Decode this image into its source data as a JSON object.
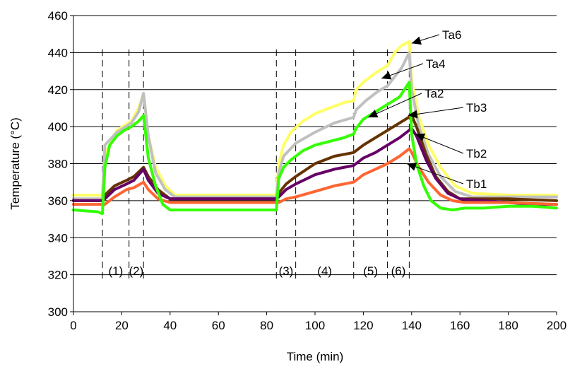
{
  "chart_data": {
    "type": "line",
    "xlabel": "Time (min)",
    "ylabel": "Temperature (°C)",
    "xlim": [
      0,
      200
    ],
    "ylim": [
      300,
      460
    ],
    "x_ticks": [
      0,
      20,
      40,
      60,
      80,
      100,
      120,
      140,
      160,
      180,
      200
    ],
    "y_ticks": [
      300,
      320,
      340,
      360,
      380,
      400,
      420,
      440,
      460
    ],
    "grid": "horizontal",
    "legend": "none",
    "series": [
      {
        "name": "Ta6",
        "color": "#FFFF66",
        "x": [
          0,
          12,
          13,
          18,
          24,
          27,
          29,
          31,
          34,
          38,
          42,
          60,
          84,
          85,
          87,
          90,
          95,
          100,
          106,
          112,
          116,
          117,
          120,
          125,
          130,
          133,
          136,
          139,
          140,
          143,
          147,
          152,
          158,
          165,
          180,
          200
        ],
        "y": [
          363,
          363,
          385,
          398,
          403,
          410,
          418,
          395,
          378,
          368,
          363,
          363,
          363,
          380,
          390,
          397,
          403,
          407,
          410,
          413,
          414,
          420,
          424,
          429,
          433,
          440,
          444,
          446,
          425,
          405,
          390,
          378,
          368,
          364,
          363,
          363
        ]
      },
      {
        "name": "Ta4",
        "color": "#C0C0C0",
        "x": [
          0,
          12,
          13,
          18,
          24,
          27,
          29,
          31,
          34,
          38,
          42,
          60,
          84,
          85,
          87,
          92,
          100,
          108,
          116,
          117,
          121,
          126,
          130,
          133,
          136,
          139,
          140,
          143,
          147,
          152,
          158,
          165,
          180,
          200
        ],
        "y": [
          361,
          361,
          390,
          397,
          402,
          408,
          418,
          395,
          375,
          366,
          362,
          362,
          362,
          375,
          384,
          391,
          397,
          402,
          405,
          409,
          414,
          419,
          422,
          427,
          432,
          440,
          420,
          400,
          385,
          373,
          365,
          362,
          362,
          362
        ]
      },
      {
        "name": "Tb3",
        "color": "#663300",
        "x": [
          0,
          12,
          13,
          17,
          22,
          25,
          29,
          31,
          35,
          40,
          60,
          84,
          85,
          88,
          92,
          100,
          108,
          116,
          120,
          125,
          130,
          135,
          140,
          142,
          146,
          150,
          155,
          160,
          180,
          200
        ],
        "y": [
          360,
          360,
          363,
          368,
          371,
          373,
          378,
          373,
          366,
          361,
          361,
          361,
          364,
          369,
          373,
          380,
          384,
          386,
          390,
          394,
          398,
          402,
          406,
          400,
          385,
          373,
          365,
          361,
          361,
          360
        ]
      },
      {
        "name": "Tb2",
        "color": "#660066",
        "x": [
          0,
          12,
          13,
          17,
          22,
          25,
          29,
          31,
          35,
          40,
          60,
          84,
          85,
          88,
          92,
          100,
          108,
          116,
          120,
          125,
          130,
          135,
          140,
          142,
          146,
          150,
          155,
          160,
          170,
          180,
          190,
          200
        ],
        "y": [
          360,
          360,
          361,
          366,
          369,
          371,
          377,
          371,
          364,
          361,
          361,
          361,
          362,
          366,
          369,
          374,
          377,
          379,
          383,
          386,
          390,
          394,
          399,
          395,
          382,
          372,
          364,
          361,
          360,
          359,
          358,
          358
        ]
      },
      {
        "name": "Tb1",
        "color": "#FF6633",
        "x": [
          0,
          12,
          13,
          17,
          22,
          25,
          29,
          31,
          35,
          40,
          60,
          84,
          85,
          88,
          92,
          100,
          108,
          116,
          120,
          125,
          130,
          135,
          139,
          140,
          143,
          147,
          152,
          157,
          162,
          180,
          200
        ],
        "y": [
          358,
          358,
          358,
          362,
          366,
          367,
          370,
          366,
          361,
          359,
          359,
          359,
          359,
          361,
          362,
          365,
          368,
          370,
          374,
          377,
          380,
          384,
          388,
          386,
          378,
          370,
          363,
          360,
          359,
          359,
          358
        ]
      },
      {
        "name": "Ta2",
        "color": "#33FF00",
        "x": [
          0,
          10,
          12,
          13,
          15,
          18,
          21,
          24,
          27,
          29,
          31,
          34,
          37,
          40,
          45,
          60,
          84,
          85,
          87,
          90,
          95,
          100,
          106,
          112,
          116,
          117,
          120,
          125,
          130,
          135,
          139,
          140,
          142,
          145,
          148,
          152,
          157,
          162,
          170,
          180,
          190,
          200
        ],
        "y": [
          355,
          354,
          353,
          378,
          390,
          395,
          398,
          400,
          403,
          406,
          383,
          368,
          358,
          355,
          355,
          355,
          355,
          372,
          378,
          382,
          387,
          390,
          392,
          394,
          396,
          399,
          404,
          408,
          412,
          416,
          424,
          396,
          380,
          368,
          360,
          356,
          355,
          356,
          356,
          357,
          357,
          356
        ]
      }
    ],
    "series_labels": [
      {
        "name": "Ta6",
        "text": "Ta6"
      },
      {
        "name": "Ta4",
        "text": "Ta4"
      },
      {
        "name": "Ta2",
        "text": "Ta2"
      },
      {
        "name": "Tb3",
        "text": "Tb3"
      },
      {
        "name": "Tb2",
        "text": "Tb2"
      },
      {
        "name": "Tb1",
        "text": "Tb1"
      }
    ],
    "phase_boundaries": [
      12,
      23,
      29,
      84,
      92,
      116,
      130,
      139
    ],
    "phases": [
      {
        "label": "(1)",
        "from": 12,
        "to": 23
      },
      {
        "label": "(2)",
        "from": 23,
        "to": 29
      },
      {
        "label": "(3)",
        "from": 84,
        "to": 92
      },
      {
        "label": "(4)",
        "from": 92,
        "to": 116
      },
      {
        "label": "(5)",
        "from": 116,
        "to": 130
      },
      {
        "label": "(6)",
        "from": 130,
        "to": 139
      }
    ]
  }
}
